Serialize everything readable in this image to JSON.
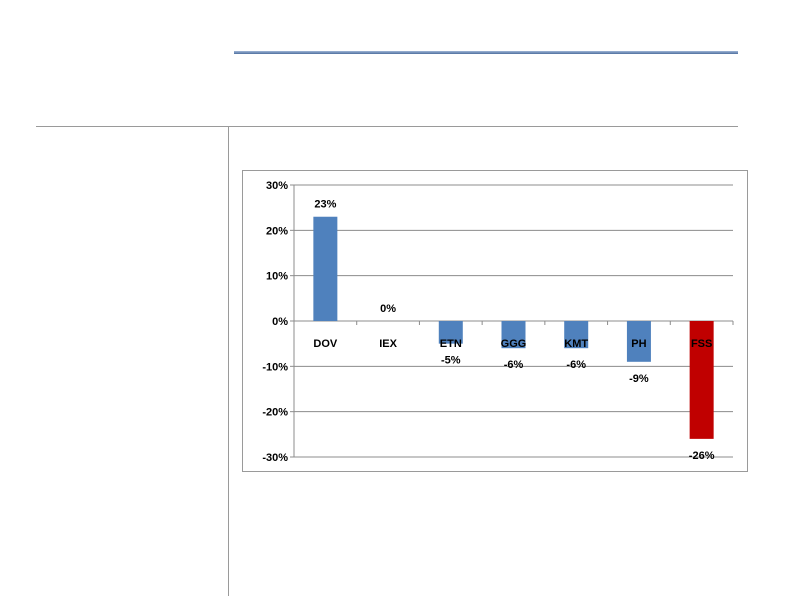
{
  "chart_data": {
    "type": "bar",
    "categories": [
      "DOV",
      "IEX",
      "ETN",
      "GGG",
      "KMT",
      "PH",
      "FSS"
    ],
    "values": [
      23,
      0,
      -5,
      -6,
      -6,
      -9,
      -26
    ],
    "data_labels": [
      "23%",
      "0%",
      "-5%",
      "-6%",
      "-6%",
      "-9%",
      "-26%"
    ],
    "y_ticks": [
      30,
      20,
      10,
      0,
      -10,
      -20,
      -30
    ],
    "y_tick_labels": [
      "30%",
      "20%",
      "10%",
      "0%",
      "-10%",
      "-20%",
      "-30%"
    ],
    "ylim": [
      -30,
      30
    ],
    "grid": true,
    "colors": {
      "default_bar": "#4f81bd",
      "highlight_bar": "#c00000",
      "gridline": "#8c8c8c"
    },
    "highlight_category": "FSS"
  }
}
